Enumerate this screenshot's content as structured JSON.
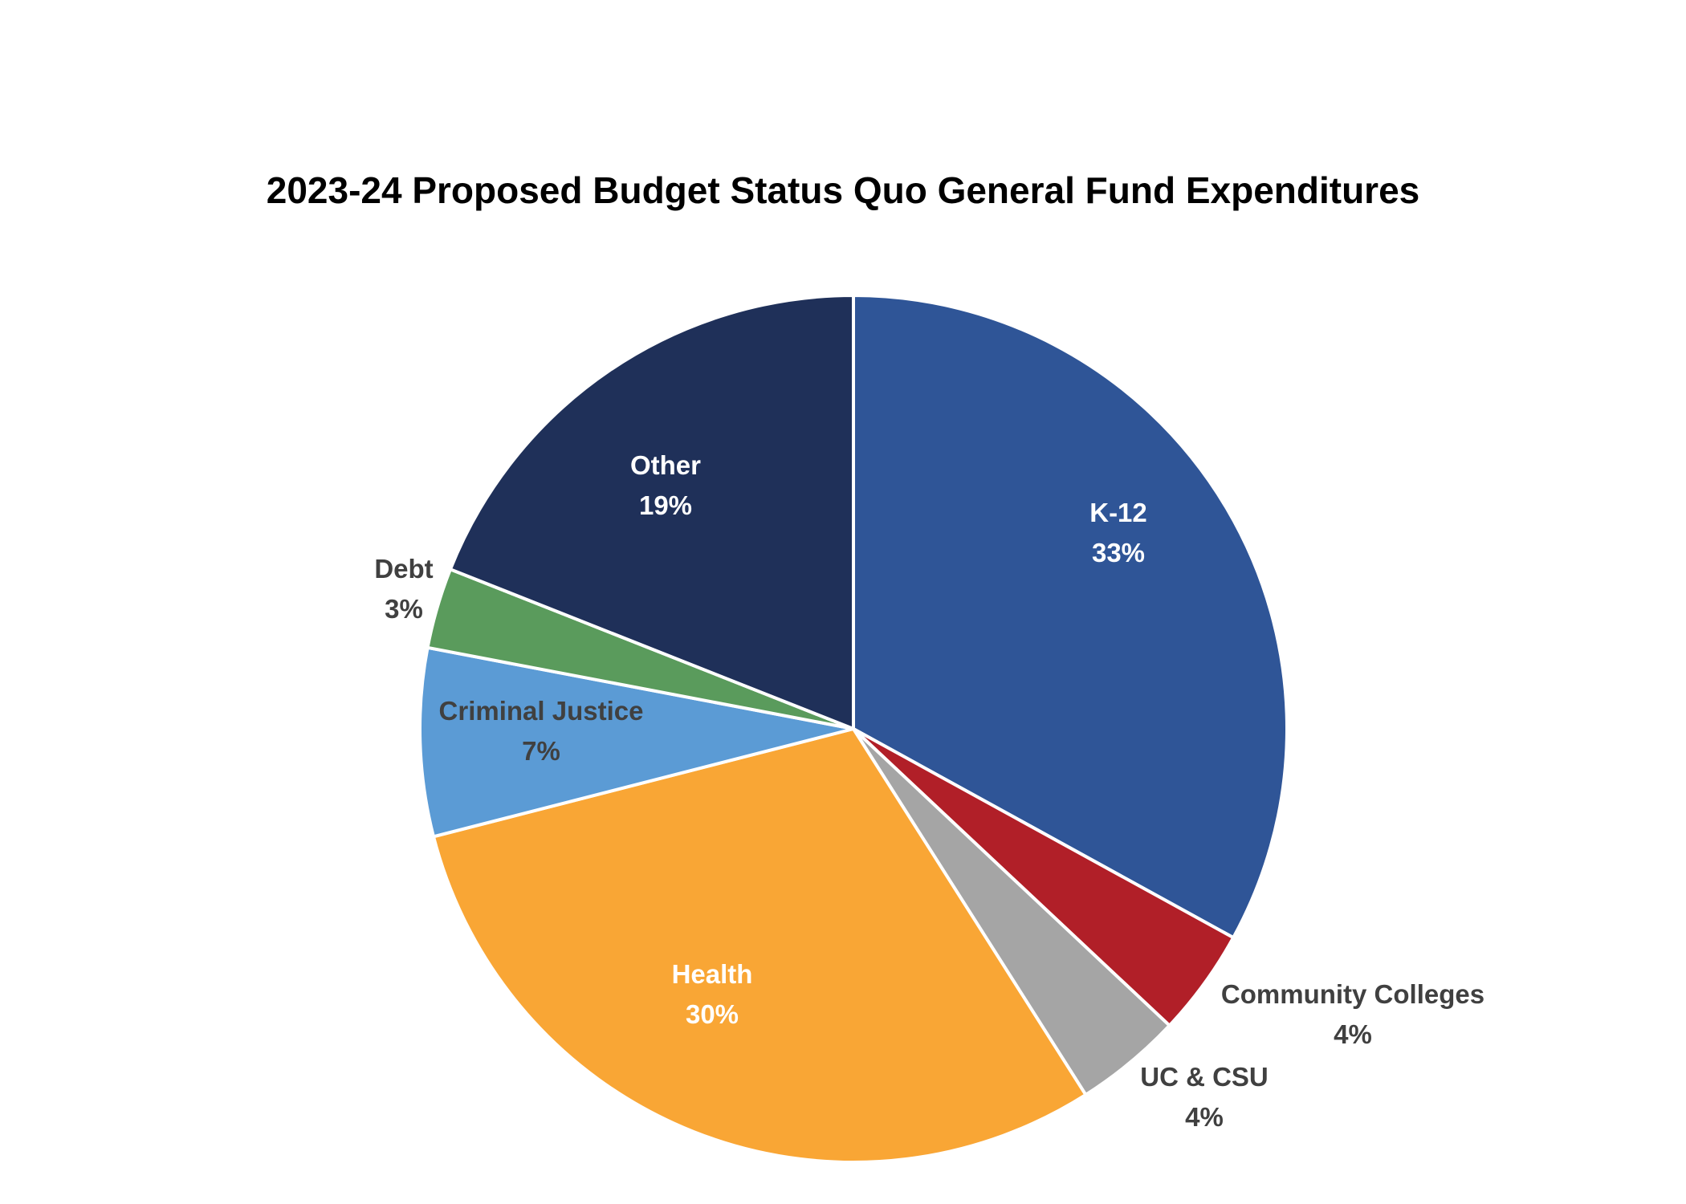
{
  "chart_data": {
    "type": "pie",
    "title": "2023-24 Proposed Budget Status Quo General Fund Expenditures",
    "slices": [
      {
        "name": "K-12",
        "label": "33%",
        "value": 33,
        "color": "#2F5597",
        "label_color": "#ffffff"
      },
      {
        "name": "Community Colleges",
        "label": "4%",
        "value": 4,
        "color": "#B11F28",
        "label_color": "#404040"
      },
      {
        "name": "UC & CSU",
        "label": "4%",
        "value": 4,
        "color": "#A5A5A5",
        "label_color": "#404040"
      },
      {
        "name": "Health",
        "label": "30%",
        "value": 30,
        "color": "#F9A635",
        "label_color": "#ffffff"
      },
      {
        "name": "Criminal Justice",
        "label": "7%",
        "value": 7,
        "color": "#5B9BD5",
        "label_color": "#404040"
      },
      {
        "name": "Debt",
        "label": "3%",
        "value": 3,
        "color": "#5A9B5C",
        "label_color": "#404040"
      },
      {
        "name": "Other",
        "label": "19%",
        "value": 19,
        "color": "#1F3059",
        "label_color": "#ffffff"
      }
    ],
    "start_angle": "12 o'clock",
    "direction": "clockwise",
    "legend": "none"
  }
}
